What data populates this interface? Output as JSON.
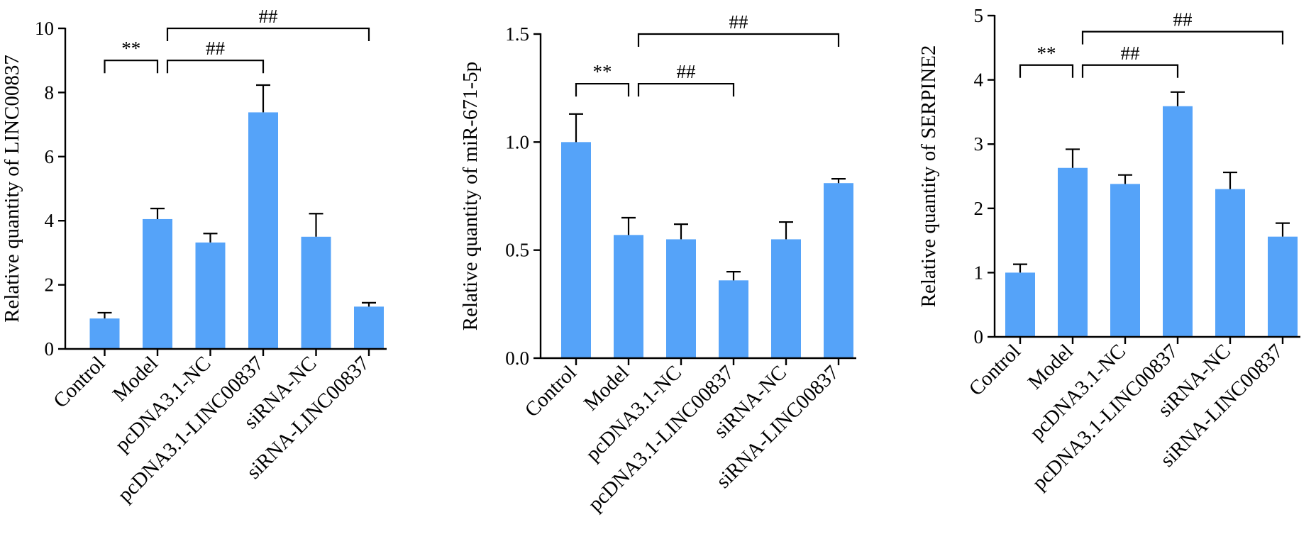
{
  "chart_data": [
    {
      "type": "bar",
      "ylabel": "Relative quantity of LINC00837",
      "ylim": [
        0,
        10
      ],
      "yticks": [
        "0",
        "2",
        "4",
        "6",
        "8",
        "10"
      ],
      "ytick_values": [
        0,
        2,
        4,
        6,
        8,
        10
      ],
      "categories": [
        "Control",
        "Model",
        "pcDNA3.1-NC",
        "pcDNA3.1-LINC00837",
        "siRNA-NC",
        "siRNA-LINC00837"
      ],
      "values": [
        0.95,
        4.05,
        3.32,
        7.38,
        3.5,
        1.32
      ],
      "errors": [
        0.18,
        0.33,
        0.28,
        0.85,
        0.72,
        0.12
      ],
      "bar_color": "#55a3f9",
      "annotations": [
        {
          "label": "**",
          "from": 0,
          "to": 1,
          "level": 9.0
        },
        {
          "label": "##",
          "from": 1,
          "to": 3,
          "level": 9.0
        },
        {
          "label": "##",
          "from": 1,
          "to": 5,
          "level": 10.0
        }
      ]
    },
    {
      "type": "bar",
      "ylabel": "Relative quantity of miR-671-5p",
      "ylim": [
        0,
        1.5
      ],
      "yticks": [
        "0.0",
        "0.5",
        "1.0",
        "1.5"
      ],
      "ytick_values": [
        0,
        0.5,
        1.0,
        1.5
      ],
      "categories": [
        "Control",
        "Model",
        "pcDNA3.1-NC",
        "pcDNA3.1-LINC00837",
        "siRNA-NC",
        "siRNA-LINC00837"
      ],
      "values": [
        1.0,
        0.57,
        0.55,
        0.36,
        0.55,
        0.81
      ],
      "errors": [
        0.13,
        0.08,
        0.07,
        0.04,
        0.08,
        0.02
      ],
      "bar_color": "#55a3f9",
      "annotations": [
        {
          "label": "**",
          "from": 0,
          "to": 1,
          "level": 1.27
        },
        {
          "label": "##",
          "from": 1,
          "to": 3,
          "level": 1.27
        },
        {
          "label": "##",
          "from": 1,
          "to": 5,
          "level": 1.5
        }
      ]
    },
    {
      "type": "bar",
      "ylabel": "Relative quantity of SERPINE2",
      "ylim": [
        0,
        5
      ],
      "yticks": [
        "0",
        "1",
        "2",
        "3",
        "4",
        "5"
      ],
      "ytick_values": [
        0,
        1,
        2,
        3,
        4,
        5
      ],
      "categories": [
        "Control",
        "Model",
        "pcDNA3.1-NC",
        "pcDNA3.1-LINC00837",
        "siRNA-NC",
        "siRNA-LINC00837"
      ],
      "values": [
        1.0,
        2.63,
        2.38,
        3.59,
        2.3,
        1.56
      ],
      "errors": [
        0.13,
        0.29,
        0.14,
        0.22,
        0.26,
        0.21
      ],
      "bar_color": "#55a3f9",
      "annotations": [
        {
          "label": "**",
          "from": 0,
          "to": 1,
          "level": 4.23
        },
        {
          "label": "##",
          "from": 1,
          "to": 3,
          "level": 4.23
        },
        {
          "label": "##",
          "from": 1,
          "to": 5,
          "level": 4.75
        }
      ]
    }
  ]
}
